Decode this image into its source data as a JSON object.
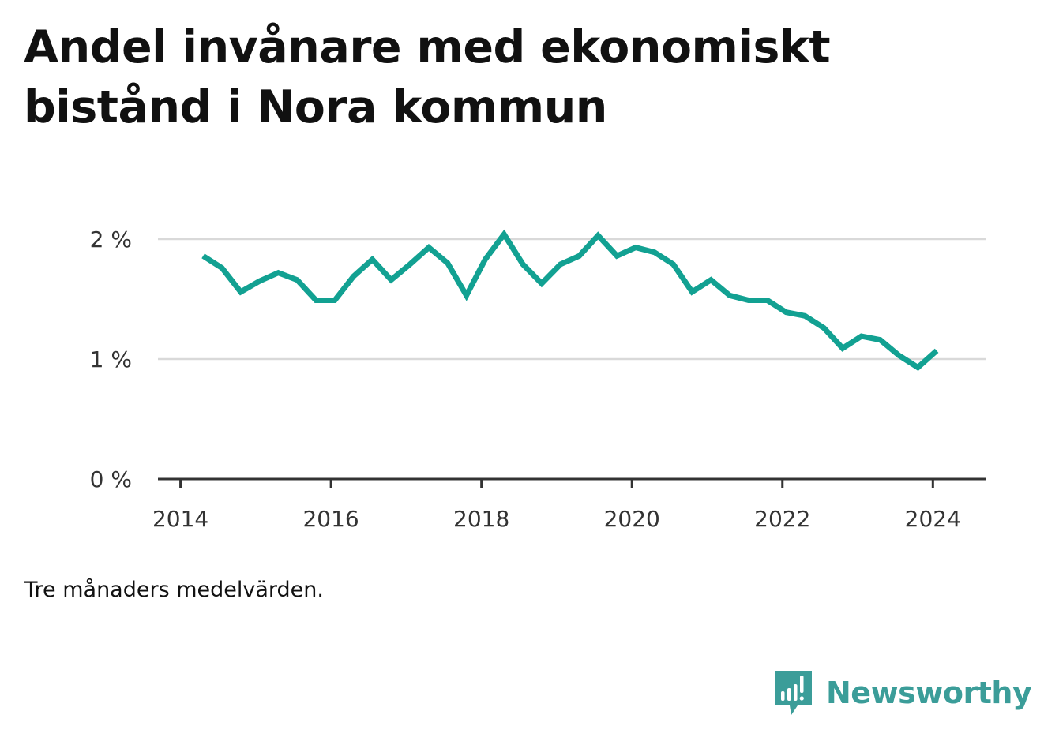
{
  "title": "Andel invånare med ekonomiskt bistånd i Nora kommun",
  "note": "Tre månaders medelvärden.",
  "brand": {
    "name": "Newsworthy",
    "icon": "newsworthy-bar-chart-logo",
    "color": "#3b9d99"
  },
  "colors": {
    "line": "#12a192",
    "grid": "#d9d9d9",
    "axis": "#333333"
  },
  "chart_data": {
    "type": "line",
    "title": "Andel invånare med ekonomiskt bistånd i Nora kommun",
    "xlabel": "",
    "ylabel": "",
    "xlim": [
      2013.7,
      2024.7
    ],
    "ylim": [
      0,
      2
    ],
    "y_ticks": [
      {
        "value": 0,
        "label": "0 %"
      },
      {
        "value": 1,
        "label": "1 %"
      },
      {
        "value": 2,
        "label": "2 %"
      }
    ],
    "x_ticks": [
      {
        "value": 2014,
        "label": "2014"
      },
      {
        "value": 2016,
        "label": "2016"
      },
      {
        "value": 2018,
        "label": "2018"
      },
      {
        "value": 2020,
        "label": "2020"
      },
      {
        "value": 2022,
        "label": "2022"
      },
      {
        "value": 2024,
        "label": "2024"
      }
    ],
    "grid": true,
    "series": [
      {
        "x": [
          2014.3,
          2014.55,
          2014.8,
          2015.05,
          2015.3,
          2015.55,
          2015.8,
          2016.05,
          2016.3,
          2016.55,
          2016.8,
          2017.05,
          2017.3,
          2017.55,
          2017.8,
          2018.05,
          2018.3,
          2018.55,
          2018.8,
          2019.05,
          2019.3,
          2019.55,
          2019.8,
          2020.05,
          2020.3,
          2020.55,
          2020.8,
          2021.05,
          2021.3,
          2021.55,
          2021.8,
          2022.05,
          2022.3,
          2022.55,
          2022.8,
          2023.05,
          2023.3,
          2023.55,
          2023.8,
          2024.05
        ],
        "values": [
          1.86,
          1.76,
          1.56,
          1.65,
          1.72,
          1.66,
          1.49,
          1.49,
          1.69,
          1.83,
          1.66,
          1.79,
          1.93,
          1.8,
          1.53,
          1.83,
          2.04,
          1.79,
          1.63,
          1.79,
          1.86,
          2.03,
          1.86,
          1.93,
          1.89,
          1.79,
          1.56,
          1.66,
          1.53,
          1.49,
          1.49,
          1.39,
          1.36,
          1.26,
          1.09,
          1.19,
          1.16,
          1.03,
          0.93,
          1.07
        ]
      }
    ]
  }
}
